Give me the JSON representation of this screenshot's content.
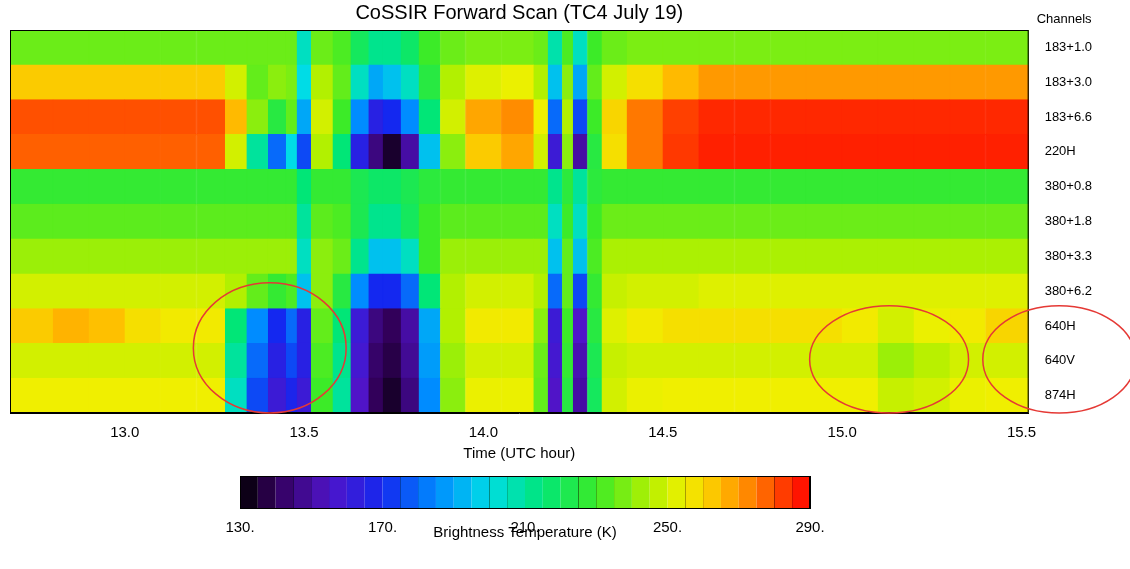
{
  "chart_data": {
    "type": "heatmap",
    "title": "CoSSIR Forward Scan (TC4 July 19)",
    "x_label": "Time (UTC hour)",
    "y_label": "Channels",
    "categories": [
      "183+1.0",
      "183+3.0",
      "183+6.6",
      "220H",
      "380+0.8",
      "380+1.8",
      "380+3.3",
      "380+6.2",
      "640H",
      "640V",
      "874H"
    ],
    "xlim": [
      12.68,
      15.52
    ],
    "xticks": [
      {
        "value": 13,
        "label": "13.0"
      },
      {
        "value": 13.5,
        "label": "13.5"
      },
      {
        "value": 14,
        "label": "14.0"
      },
      {
        "value": 14.5,
        "label": "14.5"
      },
      {
        "value": 15,
        "label": "15.0"
      },
      {
        "value": 15.5,
        "label": "15.5"
      }
    ],
    "x_edges": [
      12.68,
      12.8,
      12.9,
      13.0,
      13.1,
      13.2,
      13.28,
      13.34,
      13.4,
      13.45,
      13.48,
      13.52,
      13.58,
      13.63,
      13.68,
      13.72,
      13.77,
      13.82,
      13.88,
      13.95,
      14.05,
      14.14,
      14.18,
      14.22,
      14.25,
      14.29,
      14.33,
      14.4,
      14.5,
      14.6,
      14.7,
      14.8,
      14.9,
      15.0,
      15.1,
      15.2,
      15.3,
      15.4,
      15.52
    ],
    "cells": [
      [
        236,
        236,
        236,
        236,
        236,
        236,
        236,
        236,
        236,
        236,
        205,
        236,
        232,
        220,
        212,
        212,
        218,
        230,
        236,
        238,
        238,
        236,
        208,
        232,
        205,
        230,
        236,
        238,
        238,
        238,
        238,
        238,
        238,
        238,
        238,
        238,
        238,
        238
      ],
      [
        262,
        262,
        262,
        262,
        262,
        262,
        250,
        235,
        240,
        238,
        200,
        245,
        235,
        205,
        190,
        195,
        205,
        225,
        245,
        252,
        254,
        245,
        195,
        240,
        190,
        235,
        250,
        258,
        265,
        270,
        270,
        270,
        270,
        270,
        270,
        270,
        270,
        270
      ],
      [
        280,
        280,
        280,
        280,
        280,
        280,
        265,
        240,
        225,
        235,
        190,
        250,
        230,
        185,
        165,
        170,
        185,
        215,
        250,
        268,
        272,
        255,
        180,
        245,
        175,
        230,
        260,
        275,
        282,
        285,
        285,
        285,
        285,
        285,
        285,
        285,
        285,
        285
      ],
      [
        278,
        278,
        278,
        278,
        278,
        278,
        250,
        210,
        180,
        200,
        175,
        245,
        215,
        165,
        145,
        135,
        150,
        195,
        240,
        262,
        268,
        250,
        160,
        240,
        150,
        225,
        258,
        275,
        283,
        286,
        286,
        286,
        286,
        286,
        286,
        286,
        286,
        286
      ],
      [
        228,
        228,
        228,
        228,
        228,
        228,
        228,
        228,
        228,
        228,
        215,
        228,
        228,
        222,
        218,
        218,
        222,
        226,
        228,
        228,
        228,
        228,
        212,
        226,
        210,
        226,
        228,
        228,
        228,
        228,
        228,
        228,
        228,
        228,
        228,
        228,
        228,
        228
      ],
      [
        234,
        234,
        234,
        234,
        234,
        234,
        234,
        234,
        234,
        234,
        210,
        234,
        232,
        222,
        212,
        212,
        220,
        230,
        234,
        234,
        234,
        234,
        205,
        230,
        205,
        230,
        236,
        236,
        236,
        236,
        236,
        236,
        236,
        236,
        236,
        236,
        236,
        236
      ],
      [
        242,
        242,
        242,
        242,
        242,
        242,
        242,
        242,
        242,
        242,
        205,
        240,
        236,
        212,
        195,
        195,
        205,
        230,
        242,
        242,
        242,
        242,
        195,
        235,
        195,
        232,
        244,
        244,
        244,
        244,
        244,
        244,
        244,
        244,
        244,
        244,
        244,
        244
      ],
      [
        250,
        250,
        250,
        250,
        250,
        250,
        245,
        235,
        228,
        232,
        195,
        240,
        225,
        185,
        170,
        170,
        180,
        215,
        245,
        250,
        250,
        245,
        180,
        235,
        175,
        228,
        248,
        250,
        250,
        252,
        252,
        252,
        252,
        252,
        252,
        252,
        252,
        252
      ],
      [
        262,
        266,
        264,
        258,
        256,
        256,
        215,
        185,
        170,
        180,
        165,
        235,
        215,
        160,
        145,
        140,
        150,
        190,
        245,
        256,
        256,
        240,
        160,
        230,
        155,
        225,
        252,
        256,
        258,
        258,
        258,
        258,
        258,
        256,
        250,
        254,
        256,
        260
      ],
      [
        250,
        250,
        250,
        250,
        250,
        250,
        210,
        180,
        165,
        175,
        165,
        232,
        212,
        158,
        142,
        138,
        148,
        188,
        242,
        250,
        250,
        236,
        158,
        228,
        152,
        222,
        248,
        250,
        250,
        250,
        250,
        250,
        250,
        250,
        242,
        246,
        250,
        250
      ],
      [
        255,
        255,
        255,
        255,
        255,
        255,
        205,
        175,
        160,
        168,
        160,
        230,
        210,
        155,
        140,
        135,
        145,
        185,
        240,
        254,
        254,
        235,
        155,
        225,
        150,
        220,
        250,
        254,
        255,
        255,
        255,
        255,
        255,
        255,
        248,
        250,
        254,
        255
      ]
    ],
    "colorbar": {
      "label": "Brightness Temperature (K)",
      "range": [
        130,
        290
      ],
      "ticks": [
        {
          "value": 130,
          "label": "130."
        },
        {
          "value": 170,
          "label": "170."
        },
        {
          "value": 210,
          "label": "210."
        },
        {
          "value": 250,
          "label": "250."
        },
        {
          "value": 290,
          "label": "290."
        }
      ]
    }
  }
}
